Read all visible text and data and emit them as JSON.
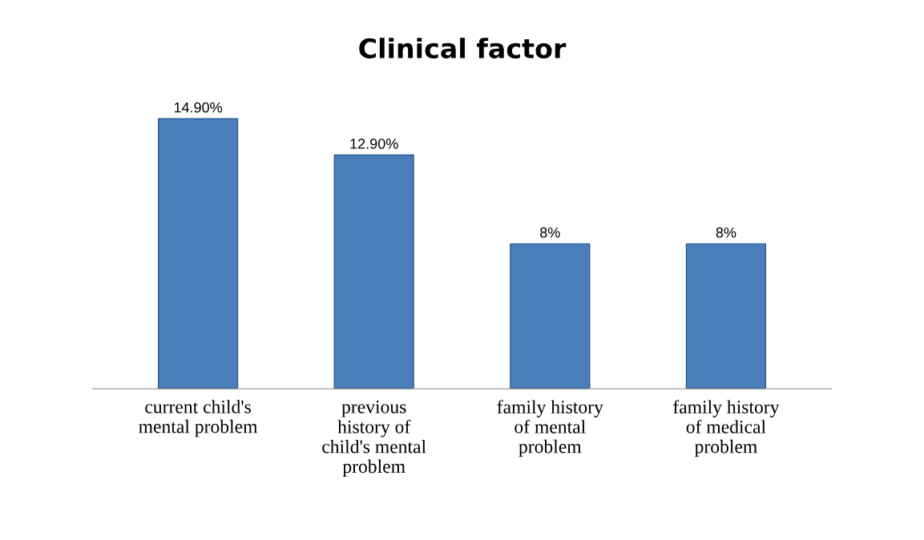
{
  "chart_data": {
    "type": "bar",
    "title": "Clinical factor",
    "categories": [
      "current child's\nmental problem",
      "previous\nhistory of\nchild's mental\nproblem",
      "family history\nof mental\nproblem",
      "family history\nof medical\nproblem"
    ],
    "values": [
      14.9,
      12.9,
      8,
      8
    ],
    "value_labels": [
      "14.90%",
      "12.90%",
      "8%",
      "8%"
    ],
    "color": "#4a7ebb",
    "grid": false,
    "legend": false
  }
}
